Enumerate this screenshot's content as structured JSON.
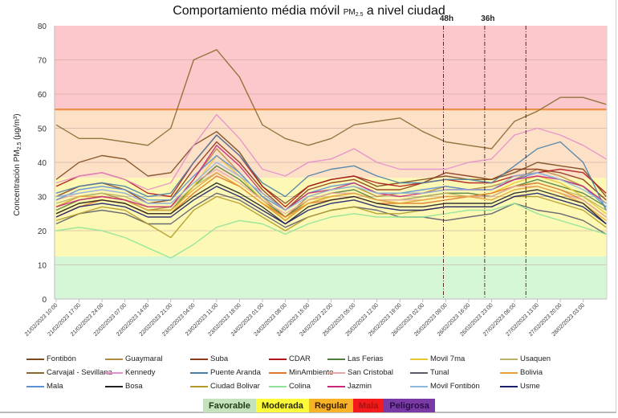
{
  "chart_data": {
    "type": "line",
    "title": "Comportamiento média móvil PM2.5 a nivel ciudad",
    "title_parts": {
      "main": "Comportamiento média móvil ",
      "pm": "PM",
      "pm_sub": "2.5",
      "tail": "  a nivel ciudad"
    },
    "xlabel": "",
    "ylabel": "Concentración PM2.5 (µg/m³)",
    "ylabel_parts": {
      "pre": "Concentración PM",
      "sub": "2.5",
      "post": " (µg/m³)"
    },
    "ylim": [
      0,
      80
    ],
    "yticks": [
      0,
      10,
      20,
      30,
      40,
      50,
      60,
      70,
      80
    ],
    "grid": true,
    "legend_position": "bottom",
    "x_tick_labels": [
      "21/02/2023 10:00",
      "21/02/2023 17:00",
      "21/02/2023 24:00",
      "22/02/2023 07:00",
      "22/02/2023 14:00",
      "22/02/2023 21:00",
      "23/02/2023 04:00",
      "23/02/2023 11:00",
      "23/02/2023 18:00",
      "24/02/2023 01:00",
      "24/02/2023 08:00",
      "24/02/2023 15:00",
      "24/02/2023 22:00",
      "25/02/2023 05:00",
      "25/02/2023 12:00",
      "25/02/2023 19:00",
      "26/02/2023 02:00",
      "26/02/2023 09:00",
      "26/02/2023 16:00",
      "26/02/2023 23:00",
      "27/02/2023 06:00",
      "27/02/2023 13:00",
      "27/02/2023 20:00",
      "28/02/2023 03:00"
    ],
    "x_step_hours": 7,
    "x_points": 25,
    "bands": [
      {
        "from": 0,
        "to": 12.5,
        "color": "#d6f7d6",
        "label": "Favorable"
      },
      {
        "from": 12.5,
        "to": 35.5,
        "color": "#fdf9b4",
        "label": "Moderada"
      },
      {
        "from": 35.5,
        "to": 55.5,
        "color": "#fce1c7",
        "label": "Regular"
      },
      {
        "from": 55.5,
        "to": 80,
        "color": "#fcc8cb",
        "label": "Mala"
      }
    ],
    "threshold_line": {
      "value": 55.5,
      "color": "#f0904a"
    },
    "vertical_markers": [
      {
        "x_index": 16.9,
        "label": "48h"
      },
      {
        "x_index": 18.7,
        "label": "36h"
      },
      {
        "x_index": 20.5,
        "label": ""
      }
    ],
    "series": [
      {
        "name": "Fontibón",
        "color": "#7b4a1e",
        "values": [
          35,
          40,
          42,
          41,
          36,
          37,
          45,
          49,
          43,
          33,
          28,
          33,
          35,
          36,
          33,
          34,
          35,
          36,
          35,
          35,
          37,
          40,
          39,
          38,
          30
        ]
      },
      {
        "name": "Guaymaral",
        "color": "#b08a3e",
        "values": [
          27,
          30,
          31,
          29,
          26,
          27,
          35,
          44,
          37,
          30,
          24,
          30,
          32,
          33,
          30,
          31,
          31,
          33,
          32,
          33,
          35,
          38,
          36,
          33,
          28
        ]
      },
      {
        "name": "Suba",
        "color": "#8b3a1a",
        "values": [
          30,
          33,
          34,
          32,
          28,
          29,
          38,
          46,
          40,
          32,
          26,
          32,
          34,
          35,
          32,
          32,
          34,
          37,
          36,
          35,
          38,
          38,
          37,
          35,
          29
        ]
      },
      {
        "name": "CDAR",
        "color": "#b0161e",
        "values": [
          33,
          36,
          37,
          35,
          31,
          30,
          40,
          48,
          42,
          33,
          27,
          33,
          35,
          36,
          34,
          33,
          34,
          35,
          34,
          34,
          36,
          37,
          38,
          37,
          31
        ]
      },
      {
        "name": "Las Ferias",
        "color": "#4f7d3c",
        "values": [
          26,
          29,
          30,
          29,
          26,
          26,
          33,
          39,
          35,
          29,
          24,
          29,
          31,
          32,
          29,
          29,
          30,
          31,
          31,
          30,
          33,
          35,
          33,
          31,
          27
        ]
      },
      {
        "name": "Movil 7ma",
        "color": "#e8c531",
        "values": [
          25,
          28,
          29,
          28,
          25,
          25,
          33,
          42,
          36,
          29,
          23,
          29,
          30,
          31,
          29,
          28,
          29,
          30,
          30,
          31,
          34,
          36,
          34,
          30,
          25
        ]
      },
      {
        "name": "Usaquen",
        "color": "#b8b26a",
        "values": [
          28,
          30,
          31,
          30,
          27,
          27,
          33,
          37,
          33,
          28,
          23,
          28,
          30,
          31,
          29,
          29,
          30,
          31,
          30,
          30,
          33,
          34,
          32,
          30,
          26
        ]
      },
      {
        "name": "Carvajal - Sevillana",
        "color": "#8a6a32",
        "values": [
          51,
          47,
          47,
          46,
          45,
          50,
          70,
          73,
          65,
          51,
          47,
          45,
          47,
          51,
          52,
          53,
          49,
          46,
          45,
          44,
          52,
          55,
          59,
          59,
          57
        ]
      },
      {
        "name": "Kennedy",
        "color": "#e58ecb",
        "values": [
          34,
          36,
          37,
          35,
          32,
          34,
          45,
          54,
          47,
          38,
          36,
          40,
          41,
          44,
          40,
          38,
          38,
          38,
          40,
          41,
          48,
          50,
          48,
          45,
          41
        ]
      },
      {
        "name": "Puente Aranda",
        "color": "#4a7fa8",
        "values": [
          31,
          33,
          34,
          33,
          30,
          31,
          40,
          48,
          42,
          34,
          30,
          36,
          38,
          39,
          36,
          34,
          34,
          35,
          35,
          34,
          39,
          44,
          46,
          40,
          26
        ]
      },
      {
        "name": "MinAmbiente",
        "color": "#e0782e",
        "values": [
          24,
          27,
          29,
          28,
          25,
          25,
          31,
          36,
          33,
          28,
          24,
          28,
          29,
          30,
          28,
          28,
          28,
          29,
          30,
          31,
          33,
          34,
          32,
          29,
          24
        ]
      },
      {
        "name": "San Cristobal",
        "color": "#e7a6a4",
        "values": [
          29,
          31,
          32,
          31,
          28,
          28,
          34,
          38,
          34,
          29,
          25,
          29,
          31,
          31,
          29,
          29,
          29,
          30,
          30,
          30,
          33,
          33,
          31,
          29,
          24
        ]
      },
      {
        "name": "Tunal",
        "color": "#5a5a6e",
        "values": [
          22,
          25,
          26,
          25,
          22,
          22,
          27,
          31,
          29,
          25,
          21,
          24,
          26,
          27,
          26,
          24,
          24,
          23,
          24,
          25,
          28,
          26,
          25,
          23,
          19
        ]
      },
      {
        "name": "Bolivia",
        "color": "#e5a23c",
        "values": [
          27,
          30,
          30,
          29,
          26,
          26,
          32,
          37,
          33,
          28,
          23,
          28,
          30,
          31,
          29,
          28,
          29,
          30,
          30,
          29,
          32,
          33,
          31,
          28,
          23
        ]
      },
      {
        "name": "Mala",
        "color": "#5b8fd6",
        "values": [
          29,
          32,
          33,
          32,
          29,
          29,
          36,
          42,
          37,
          30,
          26,
          31,
          33,
          34,
          31,
          31,
          32,
          33,
          32,
          32,
          35,
          37,
          35,
          33,
          27
        ]
      },
      {
        "name": "Bosa",
        "color": "#222222",
        "values": [
          25,
          28,
          29,
          28,
          25,
          25,
          30,
          34,
          31,
          27,
          22,
          27,
          29,
          30,
          28,
          27,
          27,
          28,
          28,
          28,
          31,
          32,
          30,
          28,
          22
        ]
      },
      {
        "name": "Ciudad Bolivar",
        "color": "#b39a2a",
        "values": [
          23,
          25,
          27,
          26,
          22,
          18,
          26,
          30,
          28,
          24,
          20,
          24,
          26,
          27,
          25,
          25,
          26,
          27,
          27,
          27,
          30,
          30,
          28,
          26,
          21
        ]
      },
      {
        "name": "Colina",
        "color": "#8fe39a",
        "values": [
          20,
          21,
          20,
          18,
          15,
          12,
          16,
          21,
          23,
          22,
          19,
          22,
          24,
          25,
          24,
          24,
          24,
          25,
          26,
          26,
          28,
          25,
          23,
          21,
          19
        ]
      },
      {
        "name": "Jazmin",
        "color": "#c8287a",
        "values": [
          27,
          29,
          30,
          29,
          27,
          27,
          35,
          45,
          39,
          31,
          26,
          31,
          32,
          34,
          31,
          30,
          31,
          32,
          32,
          32,
          35,
          36,
          35,
          33,
          28
        ]
      },
      {
        "name": "Móvil Fontibón",
        "color": "#8fb8de",
        "values": [
          30,
          31,
          32,
          31,
          28,
          28,
          34,
          40,
          36,
          31,
          26,
          30,
          32,
          33,
          31,
          31,
          31,
          32,
          32,
          32,
          36,
          37,
          35,
          32,
          28
        ]
      },
      {
        "name": "Usme",
        "color": "#1b1f6e",
        "values": [
          24,
          27,
          28,
          27,
          24,
          24,
          29,
          33,
          30,
          26,
          22,
          26,
          28,
          29,
          27,
          26,
          26,
          27,
          27,
          27,
          30,
          31,
          29,
          27,
          22
        ]
      }
    ]
  },
  "legend_layout_columns": 7,
  "aqi_scale": [
    {
      "label": "Favorable",
      "color": "#c4e2bb",
      "text_color": "#1f3a18"
    },
    {
      "label": "Moderada",
      "color": "#fdfa3a",
      "text_color": "#2a2a00"
    },
    {
      "label": "Regular",
      "color": "#f7b225",
      "text_color": "#3a2000"
    },
    {
      "label": "Mala",
      "color": "#f21a1a",
      "text_color": "#b01010"
    },
    {
      "label": "Peligrosa",
      "color": "#7a3aa6",
      "text_color": "#2a0d45"
    }
  ]
}
